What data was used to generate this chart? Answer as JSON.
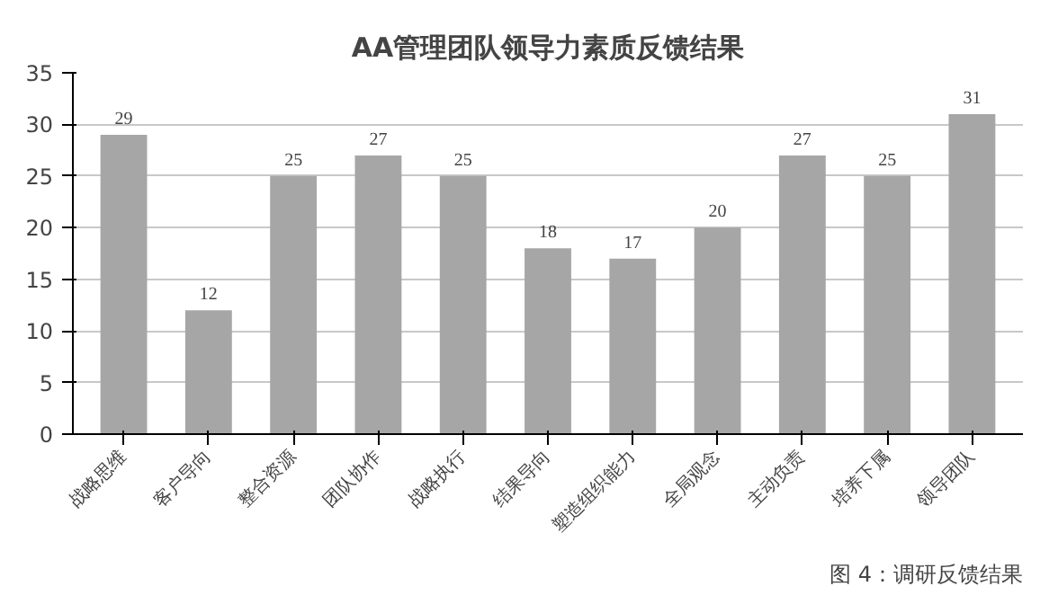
{
  "chart_data": {
    "type": "bar",
    "title": "AA管理团队领导力素质反馈结果",
    "categories": [
      "战略思维",
      "客户导向",
      "整合资源",
      "团队协作",
      "战略执行",
      "结果导向",
      "塑造组织能力",
      "全局观念",
      "主动负责",
      "培养下属",
      "领导团队"
    ],
    "values": [
      29,
      12,
      25,
      27,
      25,
      18,
      17,
      20,
      27,
      25,
      31
    ],
    "color": "#a6a6a6",
    "ylim": [
      0,
      35
    ],
    "yticks": [
      0,
      5,
      10,
      15,
      20,
      25,
      30,
      35
    ],
    "grid": "y",
    "data_labels": true,
    "annotations": [
      "图 4：调研反馈结果"
    ]
  }
}
